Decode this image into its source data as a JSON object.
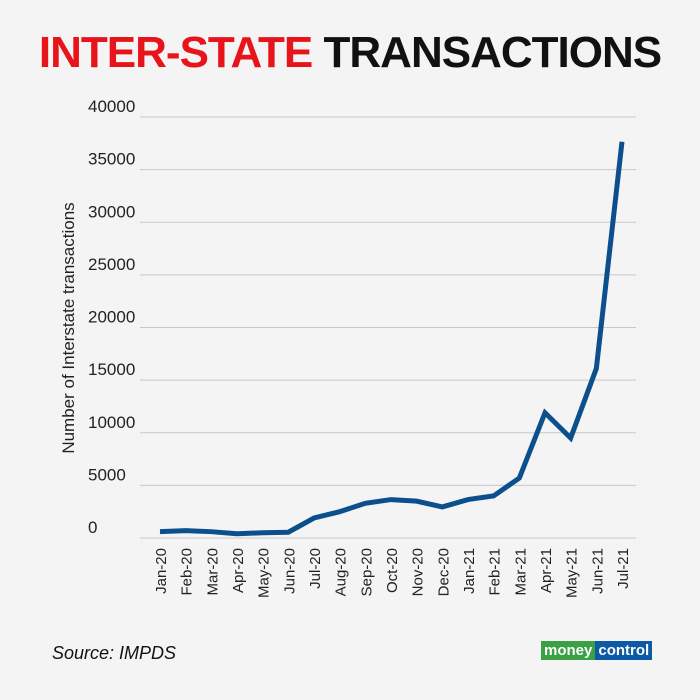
{
  "title": {
    "part1": "INTER-STATE",
    "part2": "TRANSACTIONS"
  },
  "source": "Source: IMPDS",
  "logo": {
    "part1": "money",
    "part2": "control"
  },
  "chart_data": {
    "type": "line",
    "title": "INTER-STATE TRANSACTIONS",
    "xlabel": "",
    "ylabel": "Number of Interstate transactions",
    "ylim": [
      0,
      40000
    ],
    "yticks": [
      0,
      5000,
      10000,
      15000,
      20000,
      25000,
      30000,
      35000,
      40000
    ],
    "grid": true,
    "line_color": "#0b4f8c",
    "categories": [
      "Jan-20",
      "Feb-20",
      "Mar-20",
      "Apr-20",
      "May-20",
      "Jun-20",
      "Jul-20",
      "Aug-20",
      "Sep-20",
      "Oct-20",
      "Nov-20",
      "Dec-20",
      "Jan-21",
      "Feb-21",
      "Mar-21",
      "Apr-21",
      "May-21",
      "Jun-21",
      "Jul-21"
    ],
    "values": [
      600,
      700,
      600,
      400,
      500,
      550,
      1900,
      2500,
      3300,
      3650,
      3500,
      2950,
      3650,
      4000,
      5700,
      11900,
      9500,
      16100,
      37650
    ]
  }
}
